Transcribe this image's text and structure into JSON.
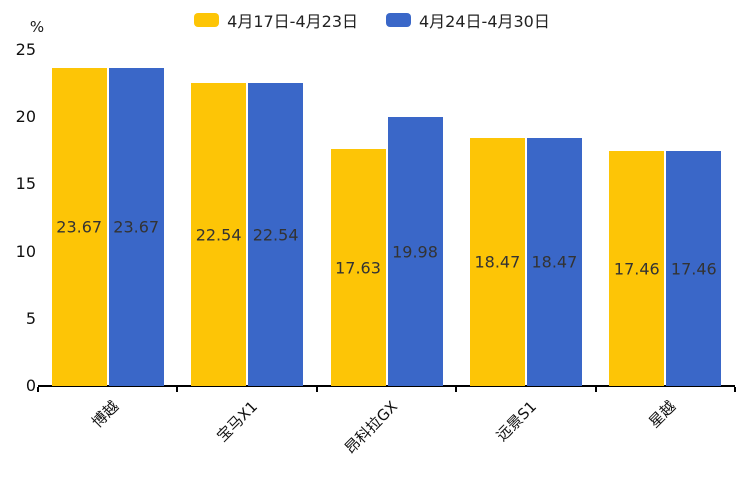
{
  "colors": {
    "background": "#ffffff",
    "axis": "#000000",
    "tick_text": "#111111",
    "value_label_text": "#333333",
    "series_yellow": "#FDC506",
    "series_blue": "#3A67C8"
  },
  "legend": {
    "items": [
      {
        "label": "4月17日-4月23日",
        "color": "#FDC506"
      },
      {
        "label": "4月24日-4月30日",
        "color": "#3A67C8"
      }
    ]
  },
  "chart_data": {
    "type": "bar",
    "title": "",
    "categories": [
      "博越",
      "宝马X1",
      "昂科拉GX",
      "远景S1",
      "星越"
    ],
    "series": [
      {
        "name": "4月17日-4月23日",
        "color": "#FDC506",
        "values": [
          23.67,
          22.54,
          17.63,
          18.47,
          17.46
        ]
      },
      {
        "name": "4月24日-4月30日",
        "color": "#3A67C8",
        "values": [
          23.67,
          22.54,
          19.98,
          18.47,
          17.46
        ]
      }
    ],
    "xlabel": "",
    "ylabel": "%",
    "ylim": [
      0,
      25
    ],
    "yticks": [
      0,
      5,
      10,
      15,
      20,
      25
    ],
    "grid": false,
    "legend_position": "top-center",
    "value_labels": "inside-middle",
    "x_label_rotation_deg": 45
  }
}
